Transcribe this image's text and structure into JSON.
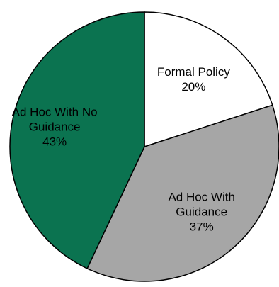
{
  "chart_data": {
    "type": "pie",
    "title": "",
    "slices": [
      {
        "name": "Formal Policy",
        "label_lines": [
          "Formal Policy",
          "20%"
        ],
        "value": 20,
        "color": "#ffffff"
      },
      {
        "name": "Ad Hoc With Guidance",
        "label_lines": [
          "Ad Hoc With",
          "Guidance",
          "37%"
        ],
        "value": 37,
        "color": "#a6a6a6"
      },
      {
        "name": "Ad Hoc With No Guidance",
        "label_lines": [
          "Ad Hoc With No",
          "Guidance",
          "43%"
        ],
        "value": 43,
        "color": "#0b7350"
      }
    ],
    "start_angle_deg": 0,
    "direction": "clockwise",
    "stroke_color": "#000000",
    "legend": "none",
    "labels_inside": true
  }
}
